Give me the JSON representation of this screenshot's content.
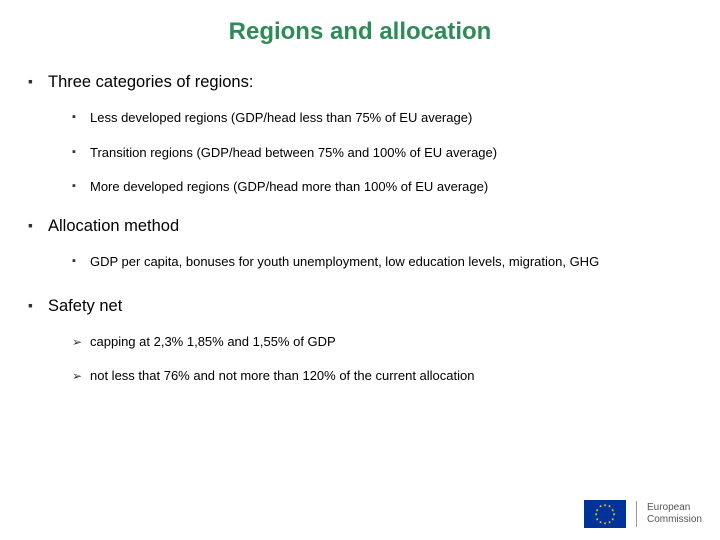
{
  "title": "Regions and allocation",
  "colors": {
    "title": "#2e8b57",
    "text": "#000000",
    "bullet": "#333333",
    "background": "#ffffff",
    "flag_bg": "#003399",
    "flag_star": "#ffcc00"
  },
  "sections": [
    {
      "heading": "Three categories of regions:",
      "sub_bullet": "square",
      "items": [
        "Less developed regions (GDP/head less than 75% of EU average)",
        "Transition regions (GDP/head between 75% and 100% of EU average)",
        "More developed regions (GDP/head more than 100% of EU average)"
      ]
    },
    {
      "heading": "Allocation method",
      "sub_bullet": "square",
      "items": [
        "GDP per capita, bonuses for youth unemployment, low education levels, migration, GHG"
      ]
    },
    {
      "heading": "Safety net",
      "sub_bullet": "arrow",
      "items": [
        "capping at 2,3% 1,85% and 1,55% of GDP",
        "not less that 76%  and not more than 120% of the current allocation"
      ]
    }
  ],
  "logo": {
    "line1": "European",
    "line2": "Commission"
  }
}
